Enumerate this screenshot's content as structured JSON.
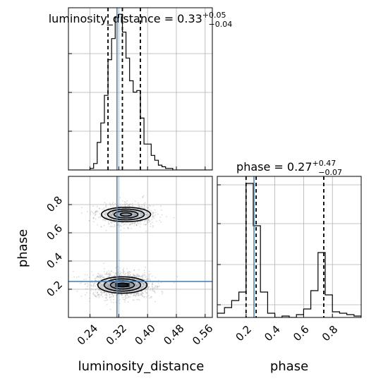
{
  "chart_data": {
    "type": "corner",
    "parameters": [
      "luminosity_distance",
      "phase"
    ],
    "truths": {
      "luminosity_distance": 0.315,
      "phase": 0.255
    },
    "colors": {
      "truth": "#3f7fb6",
      "hist": "#000000",
      "grid": "#b0b0b0",
      "density": "#7f8c9a",
      "contour": "#000000"
    },
    "panels": {
      "luminosity_distance_hist": {
        "title_main": "luminosity_distance = 0.33",
        "title_sup": "+0.05",
        "title_sub": "−0.04",
        "xlim": [
          0.18,
          0.58
        ],
        "ylim": [
          0,
          1.0
        ],
        "quantiles": [
          0.29,
          0.33,
          0.38
        ],
        "bins": {
          "edges": [
            0.18,
            0.19,
            0.2,
            0.21,
            0.22,
            0.23,
            0.24,
            0.25,
            0.26,
            0.27,
            0.28,
            0.29,
            0.3,
            0.31,
            0.32,
            0.33,
            0.34,
            0.35,
            0.36,
            0.37,
            0.38,
            0.39,
            0.4,
            0.41,
            0.42,
            0.43,
            0.44,
            0.45,
            0.46,
            0.47,
            0.48,
            0.49,
            0.5,
            0.51,
            0.52,
            0.53,
            0.54,
            0.55,
            0.56,
            0.57,
            0.58
          ],
          "counts": [
            0,
            0,
            0,
            0,
            0,
            0,
            0.01,
            0.04,
            0.17,
            0.29,
            0.46,
            0.68,
            0.81,
            0.94,
            0.96,
            0.85,
            0.69,
            0.55,
            0.48,
            0.49,
            0.32,
            0.16,
            0.16,
            0.09,
            0.06,
            0.03,
            0.02,
            0.01,
            0.01,
            0,
            0,
            0,
            0,
            0,
            0,
            0,
            0,
            0,
            0,
            0
          ]
        }
      },
      "phase_hist": {
        "title_main": "phase = 0.27",
        "title_sup": "+0.47",
        "title_sub": "−0.07",
        "xlim": [
          0.0,
          1.0
        ],
        "ylim": [
          0,
          1.0
        ],
        "quantiles": [
          0.2,
          0.27,
          0.74
        ],
        "bins": {
          "edges": [
            0.0,
            0.05,
            0.1,
            0.15,
            0.2,
            0.25,
            0.3,
            0.35,
            0.4,
            0.45,
            0.5,
            0.55,
            0.6,
            0.65,
            0.7,
            0.75,
            0.8,
            0.85,
            0.9,
            0.95,
            1.0
          ],
          "counts": [
            0.03,
            0.07,
            0.12,
            0.18,
            0.95,
            0.65,
            0.18,
            0.03,
            0.0,
            0.01,
            0.0,
            0.02,
            0.06,
            0.19,
            0.46,
            0.16,
            0.04,
            0.03,
            0.02,
            0.01
          ]
        }
      },
      "joint": {
        "xlim": [
          0.18,
          0.58
        ],
        "ylim": [
          0.0,
          1.0
        ],
        "xlabel": "luminosity_distance",
        "ylabel": "phase",
        "modes": [
          {
            "x": 0.33,
            "y": 0.23,
            "sx": 0.035,
            "sy": 0.04,
            "weight": 0.65
          },
          {
            "x": 0.34,
            "y": 0.73,
            "sx": 0.035,
            "sy": 0.035,
            "weight": 0.35
          }
        ]
      }
    },
    "ticks": {
      "lum_x": [
        "0.24",
        "0.32",
        "0.40",
        "0.48",
        "0.56"
      ],
      "phase_x": [
        "0.2",
        "0.4",
        "0.6",
        "0.8"
      ],
      "phase_y": [
        "0.2",
        "0.4",
        "0.6",
        "0.8"
      ]
    },
    "axis_labels": {
      "x_left": "luminosity_distance",
      "x_right": "phase",
      "y_left": "phase"
    },
    "grid": true
  }
}
